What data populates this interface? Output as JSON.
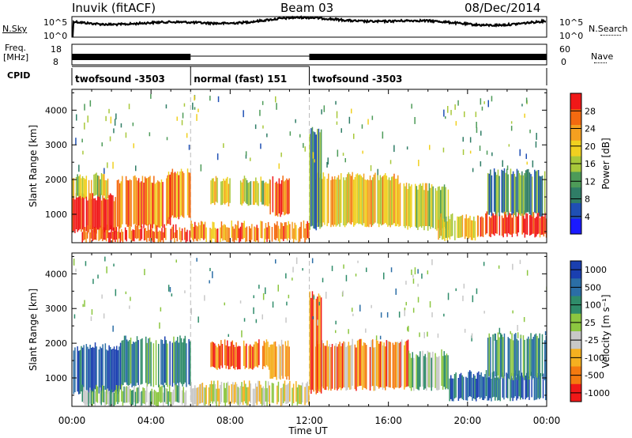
{
  "header": {
    "station": "Inuvik (fitACF)",
    "beam": "Beam 03",
    "date": "08/Dec/2014"
  },
  "side_labels": {
    "nsky": "N.Sky",
    "freq_line1": "Freq.",
    "freq_line2": "[MHz]",
    "cpid": "CPID",
    "nsearch": "N.Search",
    "nave": "Nave"
  },
  "top_panels": {
    "noise_ticks_left": [
      "10^5",
      "10^0"
    ],
    "noise_ticks_right": [
      "10^5",
      "10^0"
    ],
    "freq_ticks_left": [
      "18",
      "8"
    ],
    "freq_ticks_right": [
      "60",
      "0"
    ]
  },
  "cpid_segments": [
    {
      "label": "twofsound -3503",
      "start_h": 0,
      "end_h": 6
    },
    {
      "label": "normal (fast) 151",
      "start_h": 6,
      "end_h": 12
    },
    {
      "label": "twofsound -3503",
      "start_h": 12,
      "end_h": 24
    }
  ],
  "chart_data": [
    {
      "type": "heatmap",
      "quantity": "Power",
      "xlabel": "",
      "ylabel": "Slant Range [km]",
      "xlim_hours": [
        0,
        24
      ],
      "ylim_km": [
        180,
        4600
      ],
      "y_ticks": [
        1000,
        2000,
        3000,
        4000
      ],
      "colorbar": {
        "label": "Power [dB]",
        "range": [
          0,
          32
        ],
        "ticks": [
          4,
          8,
          12,
          16,
          20,
          24,
          28
        ],
        "tick_labels": [
          "4",
          "8",
          "12",
          "16",
          "20",
          "24",
          "28"
        ],
        "colors": [
          "#1a1aff",
          "#1f4fb4",
          "#2f7d66",
          "#4d9b58",
          "#a8c83a",
          "#f0d020",
          "#f5a020",
          "#f46a10",
          "#f01818"
        ]
      },
      "bands": [
        {
          "start_h": 0.0,
          "end_h": 2.2,
          "lo_km": 500,
          "hi_km": 1500,
          "level": 0.95
        },
        {
          "start_h": 0.0,
          "end_h": 2.0,
          "lo_km": 1500,
          "hi_km": 2100,
          "level": 0.6
        },
        {
          "start_h": 2.2,
          "end_h": 5.0,
          "lo_km": 650,
          "hi_km": 2000,
          "level": 0.8
        },
        {
          "start_h": 4.8,
          "end_h": 6.0,
          "lo_km": 900,
          "hi_km": 2200,
          "level": 0.75
        },
        {
          "start_h": 0.5,
          "end_h": 6.0,
          "lo_km": 250,
          "hi_km": 600,
          "level": 0.85
        },
        {
          "start_h": 6.0,
          "end_h": 12.0,
          "lo_km": 250,
          "hi_km": 700,
          "level": 0.75
        },
        {
          "start_h": 7.0,
          "end_h": 8.0,
          "lo_km": 1300,
          "hi_km": 2000,
          "level": 0.6
        },
        {
          "start_h": 8.5,
          "end_h": 10.0,
          "lo_km": 1300,
          "hi_km": 2000,
          "level": 0.55
        },
        {
          "start_h": 10.0,
          "end_h": 11.0,
          "lo_km": 1000,
          "hi_km": 2000,
          "level": 0.8
        },
        {
          "start_h": 12.3,
          "end_h": 16.5,
          "lo_km": 700,
          "hi_km": 2100,
          "level": 0.65
        },
        {
          "start_h": 16.5,
          "end_h": 19.0,
          "lo_km": 600,
          "hi_km": 1800,
          "level": 0.55
        },
        {
          "start_h": 18.5,
          "end_h": 20.5,
          "lo_km": 300,
          "hi_km": 900,
          "level": 0.6
        },
        {
          "start_h": 20.5,
          "end_h": 24.0,
          "lo_km": 400,
          "hi_km": 1000,
          "level": 0.95
        },
        {
          "start_h": 21.0,
          "end_h": 24.0,
          "lo_km": 1000,
          "hi_km": 2200,
          "level": 0.35
        },
        {
          "start_h": 12.0,
          "end_h": 12.6,
          "lo_km": 600,
          "hi_km": 3400,
          "level": 0.35
        }
      ]
    },
    {
      "type": "heatmap",
      "quantity": "Velocity",
      "xlabel": "Time UT",
      "ylabel": "Slant Range [km]",
      "xlim_hours": [
        0,
        24
      ],
      "ylim_km": [
        180,
        4600
      ],
      "y_ticks": [
        1000,
        2000,
        3000,
        4000
      ],
      "x_tick_labels": [
        "00:00",
        "04:00",
        "08:00",
        "12:00",
        "16:00",
        "20:00",
        "00:00"
      ],
      "colorbar": {
        "label": "Velocity [m s⁻¹]",
        "tick_labels": [
          "1000",
          "500",
          "100",
          "25",
          "-25",
          "-100",
          "-500",
          "-1000"
        ],
        "colors": [
          "#1a3fb0",
          "#2b6ea6",
          "#2f8c6a",
          "#8cc640",
          "#c8c8c8",
          "#f5b020",
          "#f47a10",
          "#f01818"
        ]
      },
      "bands": [
        {
          "start_h": 0.0,
          "end_h": 2.5,
          "lo_km": 600,
          "hi_km": 1900,
          "level": 0.1
        },
        {
          "start_h": 2.5,
          "end_h": 6.0,
          "lo_km": 800,
          "hi_km": 2100,
          "level": 0.25
        },
        {
          "start_h": 0.5,
          "end_h": 6.0,
          "lo_km": 250,
          "hi_km": 700,
          "level": 0.45
        },
        {
          "start_h": 6.0,
          "end_h": 12.0,
          "lo_km": 250,
          "hi_km": 800,
          "level": 0.55
        },
        {
          "start_h": 7.0,
          "end_h": 10.0,
          "lo_km": 1300,
          "hi_km": 2000,
          "level": 0.8
        },
        {
          "start_h": 10.0,
          "end_h": 11.0,
          "lo_km": 1000,
          "hi_km": 2000,
          "level": 0.7
        },
        {
          "start_h": 12.3,
          "end_h": 17.0,
          "lo_km": 700,
          "hi_km": 2000,
          "level": 0.75
        },
        {
          "start_h": 17.0,
          "end_h": 19.0,
          "lo_km": 700,
          "hi_km": 1700,
          "level": 0.45
        },
        {
          "start_h": 19.0,
          "end_h": 24.0,
          "lo_km": 400,
          "hi_km": 1100,
          "level": 0.15
        },
        {
          "start_h": 21.0,
          "end_h": 24.0,
          "lo_km": 1000,
          "hi_km": 2200,
          "level": 0.3
        },
        {
          "start_h": 12.0,
          "end_h": 12.6,
          "lo_km": 600,
          "hi_km": 3400,
          "level": 0.85
        }
      ]
    }
  ]
}
